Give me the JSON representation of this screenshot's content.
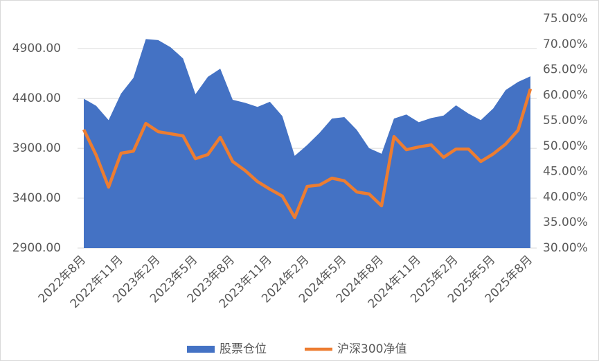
{
  "chart_data": {
    "type": "area-line",
    "categories": [
      "2022年8月",
      null,
      null,
      "2022年11月",
      null,
      null,
      "2023年2月",
      null,
      null,
      "2023年5月",
      null,
      null,
      "2023年8月",
      null,
      null,
      "2023年11月",
      null,
      null,
      "2024年2月",
      null,
      null,
      "2024年5月",
      null,
      null,
      "2024年8月",
      null,
      null,
      "2024年11月",
      null,
      null,
      "2025年2月",
      null,
      null,
      "2025年5月",
      null,
      null,
      "2025年8月"
    ],
    "series": [
      {
        "name": "股票仓位",
        "type": "area",
        "axis": "y2",
        "color": "#4472c4",
        "values": [
          59.3,
          57.9,
          55.1,
          60.3,
          63.4,
          71.0,
          70.8,
          69.4,
          67.2,
          60.2,
          63.6,
          65.2,
          59.1,
          58.5,
          57.7,
          58.7,
          55.9,
          48.1,
          50.2,
          52.6,
          55.4,
          55.7,
          53.2,
          49.6,
          48.5,
          55.4,
          56.2,
          54.7,
          55.5,
          56.0,
          58.0,
          56.4,
          55.1,
          57.4,
          61.0,
          62.6,
          63.7
        ]
      },
      {
        "name": "沪深300净值",
        "type": "line",
        "axis": "y",
        "color": "#ed7d31",
        "values": [
          4088,
          3831,
          3511,
          3851,
          3872,
          4150,
          4067,
          4046,
          4025,
          3796,
          3838,
          4011,
          3768,
          3678,
          3567,
          3490,
          3421,
          3206,
          3518,
          3532,
          3601,
          3574,
          3463,
          3442,
          3324,
          4018,
          3886,
          3914,
          3935,
          3810,
          3893,
          3893,
          3768,
          3844,
          3942,
          4081,
          4497
        ]
      }
    ],
    "ylim": [
      2900,
      5200
    ],
    "yticks": [
      {
        "value": 2900,
        "label": "2900.00"
      },
      {
        "value": 3400,
        "label": "3400.00"
      },
      {
        "value": 3900,
        "label": "3900.00"
      },
      {
        "value": 4400,
        "label": "4400.00"
      },
      {
        "value": 4900,
        "label": "4900.00"
      }
    ],
    "y2lim": [
      30,
      75
    ],
    "y2ticks": [
      {
        "value": 30,
        "label": "30.00%"
      },
      {
        "value": 35,
        "label": "35.00%"
      },
      {
        "value": 40,
        "label": "40.00%"
      },
      {
        "value": 45,
        "label": "45.00%"
      },
      {
        "value": 50,
        "label": "50.00%"
      },
      {
        "value": 55,
        "label": "55.00%"
      },
      {
        "value": 60,
        "label": "60.00%"
      },
      {
        "value": 65,
        "label": "65.00%"
      },
      {
        "value": 70,
        "label": "70.00%"
      },
      {
        "value": 75,
        "label": "75.00%"
      }
    ],
    "grid": true,
    "legend": "bottom"
  }
}
